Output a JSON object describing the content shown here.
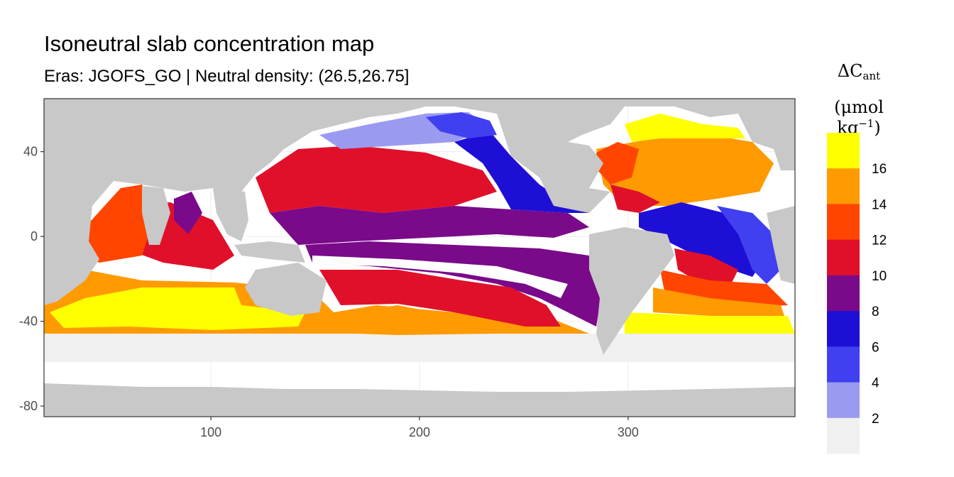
{
  "title": "Isoneutral slab concentration map",
  "subtitle": "Eras: JGOFS_GO | Neutral density: (26.5,26.75]",
  "legend": {
    "symbol": "ΔC",
    "symbol_sub": "ant",
    "unit_open": "(μmol kg",
    "unit_sup": "−1",
    "unit_close": ")",
    "placement": "right",
    "labels": [
      "2",
      "4",
      "6",
      "8",
      "10",
      "12",
      "14",
      "16"
    ],
    "colors": [
      "#f0f0f0",
      "#9a9af0",
      "#4040f0",
      "#1e0fd6",
      "#7a0a8a",
      "#e0102a",
      "#ff4500",
      "#ff9a00",
      "#ffff00"
    ]
  },
  "chart_data": {
    "type": "heatmap",
    "title": "Isoneutral slab concentration map",
    "subtitle": "Eras: JGOFS_GO | Neutral density: (26.5,26.75]",
    "xlabel": "",
    "ylabel": "",
    "x_ticks": [
      100,
      200,
      300
    ],
    "y_ticks": [
      40,
      0,
      -40,
      -80
    ],
    "xlim": [
      20,
      380
    ],
    "ylim": [
      -85,
      65
    ],
    "grid": true,
    "value_bins": [
      0,
      2,
      4,
      6,
      8,
      10,
      12,
      14,
      16,
      18
    ],
    "colors": {
      "land": "#c8c8c8",
      "no_data": "#ffffff",
      "bins": [
        "#f0f0f0",
        "#9a9af0",
        "#4040f0",
        "#1e0fd6",
        "#7a0a8a",
        "#e0102a",
        "#ff4500",
        "#ff9a00",
        "#ffff00"
      ]
    }
  }
}
